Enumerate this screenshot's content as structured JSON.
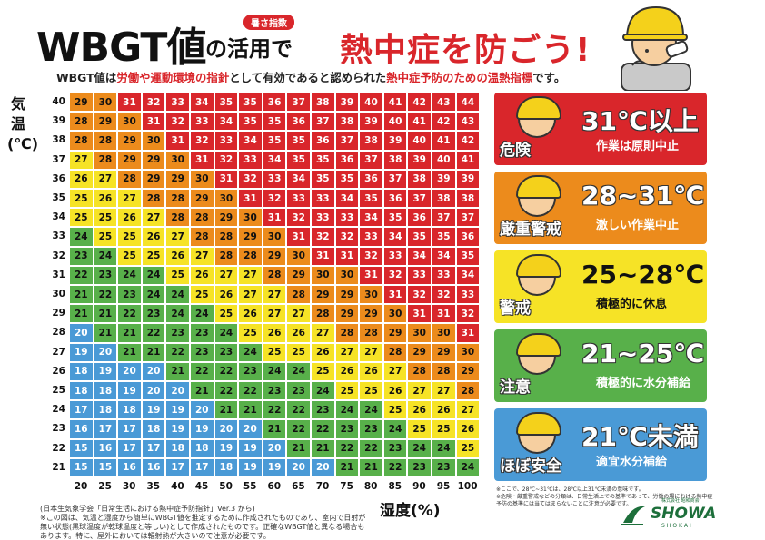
{
  "header": {
    "wbgt": "WBGT値",
    "tag": "暑さ指数",
    "mid": "の活用で",
    "red": "熱中症を防ごう!",
    "sub_pre": "WBGT値は",
    "sub_hl1": "労働や運動環境の指針",
    "sub_mid": "として有効であると認められた",
    "sub_hl2": "熱中症予防のための温熱指標",
    "sub_end": "です。"
  },
  "axes": {
    "y_title": "気温(℃)",
    "x_title": "湿度(%)",
    "temps": [
      40,
      39,
      38,
      37,
      36,
      35,
      34,
      33,
      32,
      31,
      30,
      29,
      28,
      27,
      26,
      25,
      24,
      23,
      22,
      21
    ],
    "humidity": [
      20,
      25,
      30,
      35,
      40,
      45,
      50,
      55,
      60,
      65,
      70,
      75,
      80,
      85,
      90,
      95,
      100
    ]
  },
  "table": [
    [
      29,
      30,
      31,
      32,
      33,
      34,
      35,
      35,
      36,
      37,
      38,
      39,
      40,
      41,
      42,
      43,
      44
    ],
    [
      28,
      29,
      30,
      31,
      32,
      33,
      34,
      35,
      35,
      36,
      37,
      38,
      39,
      40,
      41,
      42,
      43
    ],
    [
      28,
      28,
      29,
      30,
      31,
      32,
      33,
      34,
      35,
      35,
      36,
      37,
      38,
      39,
      40,
      41,
      42
    ],
    [
      27,
      28,
      29,
      29,
      30,
      31,
      32,
      33,
      34,
      35,
      35,
      36,
      37,
      38,
      39,
      40,
      41
    ],
    [
      26,
      27,
      28,
      29,
      29,
      30,
      31,
      32,
      33,
      34,
      35,
      35,
      36,
      37,
      38,
      39,
      39
    ],
    [
      25,
      26,
      27,
      28,
      28,
      29,
      30,
      31,
      32,
      33,
      33,
      34,
      35,
      36,
      37,
      38,
      38
    ],
    [
      25,
      25,
      26,
      27,
      28,
      28,
      29,
      30,
      31,
      32,
      33,
      33,
      34,
      35,
      36,
      37,
      37
    ],
    [
      24,
      25,
      25,
      26,
      27,
      28,
      28,
      29,
      30,
      31,
      32,
      32,
      33,
      34,
      35,
      35,
      36
    ],
    [
      23,
      24,
      25,
      25,
      26,
      27,
      28,
      28,
      29,
      30,
      31,
      31,
      32,
      33,
      34,
      34,
      35
    ],
    [
      22,
      23,
      24,
      24,
      25,
      26,
      27,
      27,
      28,
      29,
      30,
      30,
      31,
      32,
      33,
      33,
      34
    ],
    [
      21,
      22,
      23,
      24,
      24,
      25,
      26,
      27,
      27,
      28,
      29,
      29,
      30,
      31,
      32,
      32,
      33
    ],
    [
      21,
      21,
      22,
      23,
      24,
      24,
      25,
      26,
      27,
      27,
      28,
      29,
      29,
      30,
      31,
      31,
      32
    ],
    [
      20,
      21,
      21,
      22,
      23,
      23,
      24,
      25,
      26,
      26,
      27,
      28,
      28,
      29,
      30,
      30,
      31
    ],
    [
      19,
      20,
      21,
      21,
      22,
      23,
      23,
      24,
      25,
      25,
      26,
      27,
      27,
      28,
      29,
      29,
      30
    ],
    [
      18,
      19,
      20,
      20,
      21,
      22,
      22,
      23,
      24,
      24,
      25,
      26,
      26,
      27,
      28,
      28,
      29
    ],
    [
      18,
      18,
      19,
      20,
      20,
      21,
      22,
      22,
      23,
      23,
      24,
      25,
      25,
      26,
      27,
      27,
      28
    ],
    [
      17,
      18,
      18,
      19,
      19,
      20,
      21,
      21,
      22,
      22,
      23,
      24,
      24,
      25,
      26,
      26,
      27
    ],
    [
      16,
      17,
      17,
      18,
      19,
      19,
      20,
      20,
      21,
      22,
      22,
      23,
      23,
      24,
      25,
      25,
      26
    ],
    [
      15,
      16,
      17,
      17,
      18,
      18,
      19,
      19,
      20,
      21,
      21,
      22,
      22,
      23,
      24,
      24,
      25
    ],
    [
      15,
      15,
      16,
      16,
      17,
      17,
      18,
      19,
      19,
      20,
      20,
      21,
      21,
      22,
      23,
      23,
      24
    ]
  ],
  "colors": {
    "danger": "#d9262b",
    "severe": "#ec8b1c",
    "warning": "#f6e326",
    "caution": "#58b04a",
    "safe": "#4a9ad6"
  },
  "levels": [
    {
      "label": "危険",
      "range": "31℃以上",
      "action": "作業は原則中止",
      "icon": "dizzy-worker-face-icon"
    },
    {
      "label": "厳重警戒",
      "range": "28~31℃",
      "action": "激しい作業中止",
      "icon": "sweating-worker-face-icon"
    },
    {
      "label": "警戒",
      "range": "25~28℃",
      "action": "積極的に休息",
      "icon": "tired-worker-face-icon"
    },
    {
      "label": "注意",
      "range": "21~25℃",
      "action": "積極的に水分補給",
      "icon": "worker-face-icon"
    },
    {
      "label": "ほぼ安全",
      "range": "21℃未満",
      "action": "適宜水分補給",
      "icon": "smiling-worker-face-icon"
    }
  ],
  "notes": {
    "source": "(日本生気象学会「日常生活における熱中症予防指針」Ver.3 から)",
    "left": "※この図は、気温と湿度から簡単にWBGT値を推定するために作成されたものであり、室内で日射が無い状態(黒球温度が乾球温度と等しい)として作成されたものです。正確なWBGT値と異なる場合もあります。特に、屋外においては輻射熱が大きいので注意が必要です。",
    "right1": "※ここで、28℃~31℃は、28℃以上31℃未満の意味です。",
    "right2": "※危険・厳重警戒などの分類は、日常生活上での基準であって、労働の場における熱中症予防の基準には当てはまらないことに注意が必要です。"
  },
  "logo": {
    "name": "SHOWA",
    "sub": "SHOKAI",
    "top": "株式会社 昭和商会"
  }
}
